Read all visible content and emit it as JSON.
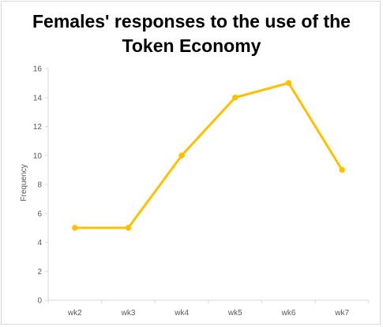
{
  "chart_data": {
    "type": "line",
    "title_line1": "Females' responses to the use of the",
    "title_line2": "Token Economy",
    "xlabel": "",
    "ylabel": "Frequency",
    "categories": [
      "wk2",
      "wk3",
      "wk4",
      "wk5",
      "wk6",
      "wk7"
    ],
    "series": [
      {
        "values": [
          5,
          5,
          10,
          14,
          15,
          9
        ]
      }
    ],
    "ylim": [
      0,
      16
    ],
    "yticks": [
      0,
      2,
      4,
      6,
      8,
      10,
      12,
      14,
      16
    ],
    "grid": false,
    "legend": "none",
    "line_color": "#FFC000"
  }
}
